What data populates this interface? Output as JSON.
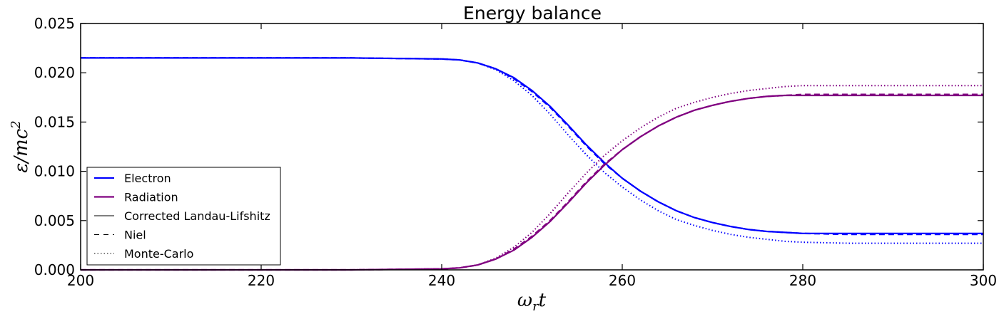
{
  "chart_data": {
    "type": "line",
    "title": "Energy balance",
    "xlabel": "ω",
    "xlabel_sub": "r",
    "xlabel_tail": "t",
    "ylabel": "ε/mc",
    "ylabel_sup": "2",
    "xlim": [
      200,
      300
    ],
    "ylim": [
      0,
      0.025
    ],
    "xticks": [
      200,
      220,
      240,
      260,
      280,
      300
    ],
    "xtick_labels": [
      "200",
      "220",
      "240",
      "260",
      "280",
      "300"
    ],
    "yticks": [
      0,
      0.005,
      0.01,
      0.015,
      0.02,
      0.025
    ],
    "ytick_labels": [
      "0.000",
      "0.005",
      "0.010",
      "0.015",
      "0.020",
      "0.025"
    ],
    "grid": false,
    "legend_position": "bottom-left",
    "legend": [
      {
        "label": "Electron",
        "color": "#0000ff",
        "dash": "solid",
        "bold": true
      },
      {
        "label": "Radiation",
        "color": "#800080",
        "dash": "solid",
        "bold": true
      },
      {
        "label": "Corrected Landau-Lifshitz",
        "color": "#000000",
        "dash": "solid",
        "bold": false
      },
      {
        "label": "Niel",
        "color": "#000000",
        "dash": "dashed",
        "bold": false
      },
      {
        "label": "Monte-Carlo",
        "color": "#000000",
        "dash": "dotted",
        "bold": false
      }
    ],
    "series": [
      {
        "species": "Electron",
        "model": "Corrected Landau-Lifshitz",
        "color": "#0000ff",
        "dash": "solid",
        "x": [
          200,
          230,
          240,
          242,
          244,
          246,
          248,
          250,
          252,
          254,
          256,
          258,
          260,
          262,
          264,
          266,
          268,
          270,
          272,
          274,
          276,
          278,
          280,
          285,
          290,
          295,
          300
        ],
        "y": [
          0.0215,
          0.0215,
          0.0214,
          0.0213,
          0.021,
          0.0204,
          0.0195,
          0.0182,
          0.0166,
          0.0147,
          0.0127,
          0.0109,
          0.0093,
          0.008,
          0.0069,
          0.006,
          0.0053,
          0.0048,
          0.0044,
          0.0041,
          0.0039,
          0.0038,
          0.0037,
          0.0037,
          0.0037,
          0.0037,
          0.0037
        ]
      },
      {
        "species": "Electron",
        "model": "Niel",
        "color": "#0000ff",
        "dash": "dashed",
        "x": [
          200,
          230,
          240,
          242,
          244,
          246,
          248,
          250,
          252,
          254,
          256,
          258,
          260,
          262,
          264,
          266,
          268,
          270,
          272,
          274,
          276,
          278,
          280,
          285,
          290,
          295,
          300
        ],
        "y": [
          0.0215,
          0.0215,
          0.0214,
          0.0213,
          0.021,
          0.0204,
          0.0194,
          0.0181,
          0.0165,
          0.0146,
          0.0126,
          0.0108,
          0.0093,
          0.008,
          0.0069,
          0.006,
          0.0053,
          0.0048,
          0.0044,
          0.0041,
          0.0039,
          0.0038,
          0.0037,
          0.0036,
          0.0036,
          0.0036,
          0.0036
        ]
      },
      {
        "species": "Electron",
        "model": "Monte-Carlo",
        "color": "#0000ff",
        "dash": "dotted",
        "x": [
          200,
          230,
          240,
          242,
          244,
          246,
          248,
          250,
          252,
          254,
          256,
          258,
          260,
          262,
          264,
          266,
          268,
          270,
          272,
          274,
          276,
          278,
          280,
          285,
          290,
          295,
          300
        ],
        "y": [
          0.0215,
          0.0215,
          0.0214,
          0.0213,
          0.021,
          0.0203,
          0.0192,
          0.0177,
          0.0158,
          0.0137,
          0.0117,
          0.0099,
          0.0084,
          0.0071,
          0.006,
          0.0051,
          0.0045,
          0.004,
          0.0036,
          0.0033,
          0.0031,
          0.0029,
          0.0028,
          0.0027,
          0.0027,
          0.0027,
          0.0027
        ]
      },
      {
        "species": "Radiation",
        "model": "Corrected Landau-Lifshitz",
        "color": "#800080",
        "dash": "solid",
        "x": [
          200,
          230,
          240,
          242,
          244,
          246,
          248,
          250,
          252,
          254,
          256,
          258,
          260,
          262,
          264,
          266,
          268,
          270,
          272,
          274,
          276,
          278,
          280,
          285,
          290,
          295,
          300
        ],
        "y": [
          0,
          0,
          0.0001,
          0.0002,
          0.0005,
          0.0011,
          0.002,
          0.0033,
          0.0049,
          0.0068,
          0.0088,
          0.0106,
          0.0122,
          0.0135,
          0.0146,
          0.0155,
          0.0162,
          0.0167,
          0.0171,
          0.0174,
          0.0176,
          0.0177,
          0.0177,
          0.0177,
          0.0177,
          0.0177,
          0.0177
        ]
      },
      {
        "species": "Radiation",
        "model": "Niel",
        "color": "#800080",
        "dash": "dashed",
        "x": [
          200,
          230,
          240,
          242,
          244,
          246,
          248,
          250,
          252,
          254,
          256,
          258,
          260,
          262,
          264,
          266,
          268,
          270,
          272,
          274,
          276,
          278,
          280,
          285,
          290,
          295,
          300
        ],
        "y": [
          0,
          0,
          0.0001,
          0.0002,
          0.0005,
          0.0011,
          0.0021,
          0.0034,
          0.005,
          0.0069,
          0.0089,
          0.0107,
          0.0122,
          0.0135,
          0.0146,
          0.0155,
          0.0162,
          0.0167,
          0.0171,
          0.0174,
          0.0176,
          0.0177,
          0.0178,
          0.0178,
          0.0178,
          0.0178,
          0.0178
        ]
      },
      {
        "species": "Radiation",
        "model": "Monte-Carlo",
        "color": "#800080",
        "dash": "dotted",
        "x": [
          200,
          230,
          240,
          242,
          244,
          246,
          248,
          250,
          252,
          254,
          256,
          258,
          260,
          262,
          264,
          266,
          268,
          270,
          272,
          274,
          276,
          278,
          280,
          285,
          290,
          295,
          300
        ],
        "y": [
          0,
          0,
          0.0001,
          0.0002,
          0.0005,
          0.0012,
          0.0023,
          0.0038,
          0.0057,
          0.0078,
          0.0098,
          0.0116,
          0.0131,
          0.0144,
          0.0155,
          0.0164,
          0.017,
          0.0175,
          0.0179,
          0.0182,
          0.0184,
          0.0186,
          0.0187,
          0.0187,
          0.0187,
          0.0187,
          0.0187
        ]
      }
    ]
  }
}
